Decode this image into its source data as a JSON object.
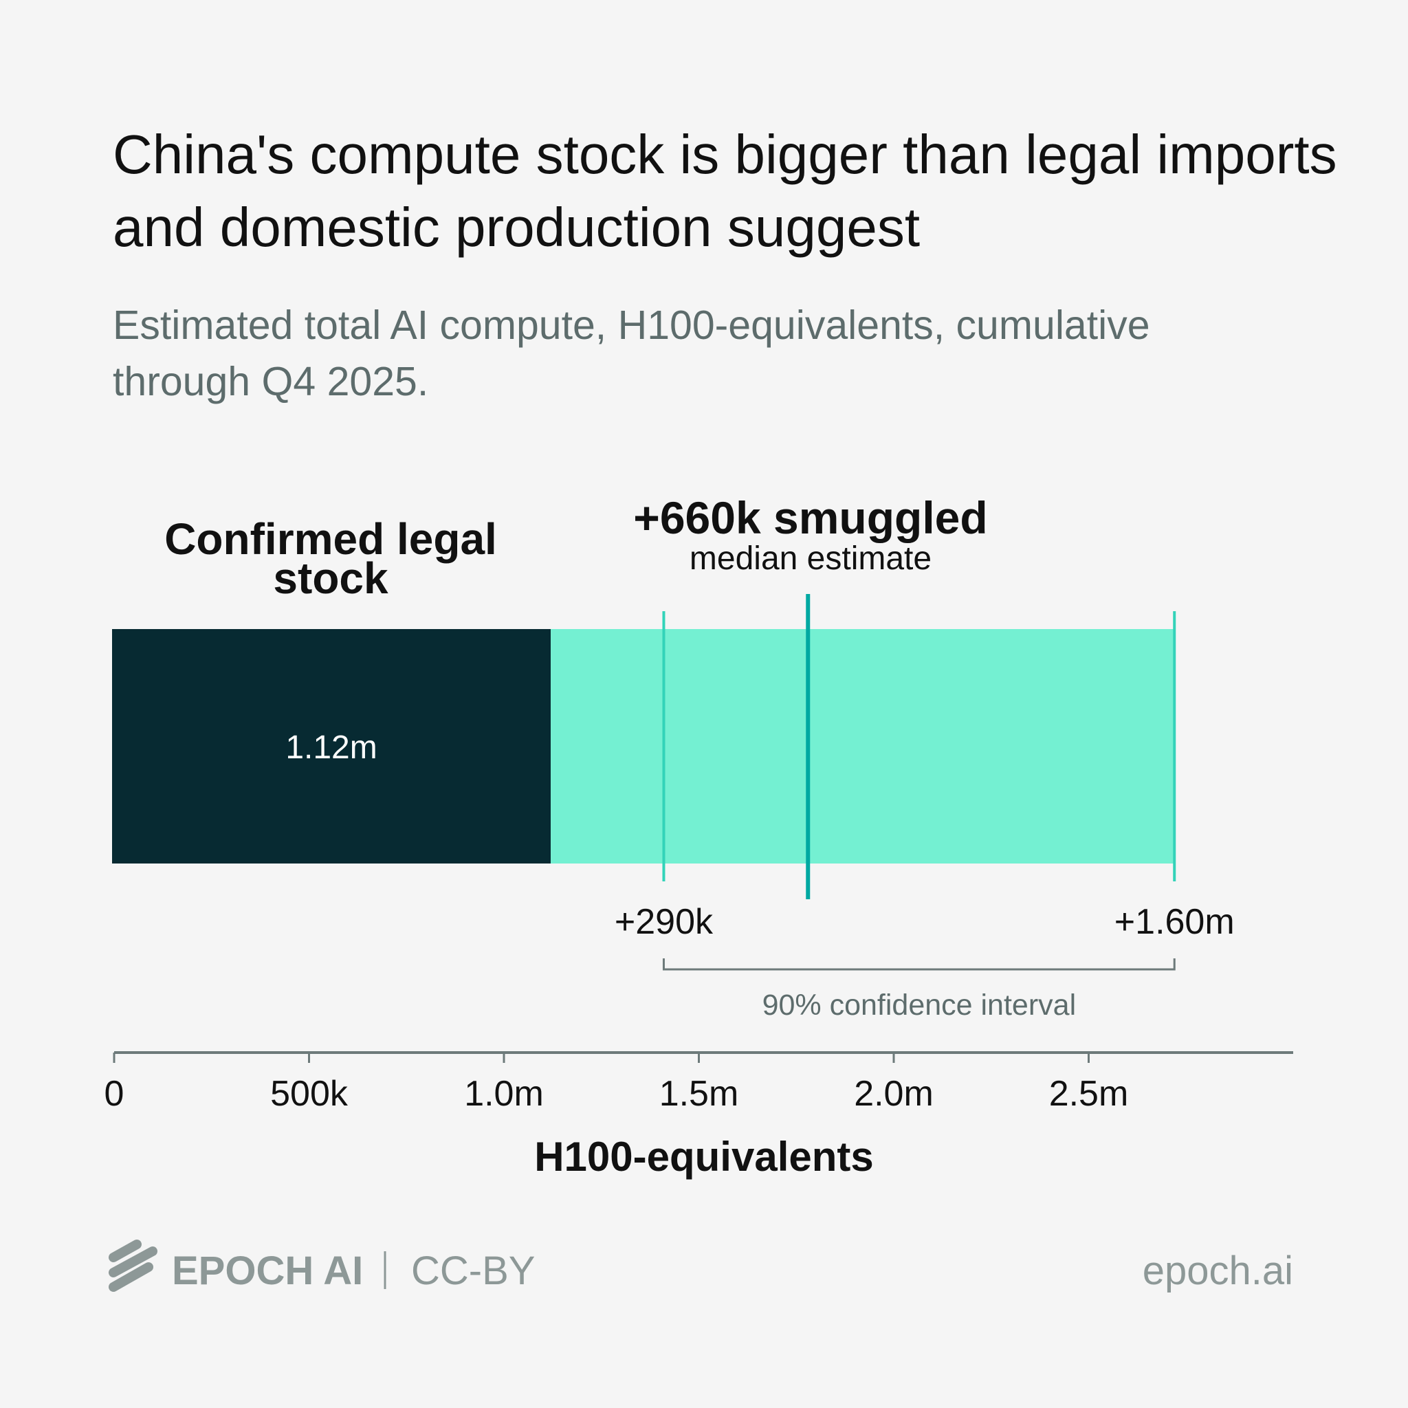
{
  "title": "China's compute stock is bigger than legal imports and domestic production suggest",
  "subtitle": "Estimated total AI compute, H100-equivalents, cumulative through Q4 2025.",
  "chart_data": {
    "type": "bar",
    "orientation": "horizontal-stacked",
    "xlabel": "H100-equivalents",
    "xlim": [
      0,
      3000000
    ],
    "ticks": [
      0,
      500000,
      1000000,
      1500000,
      2000000,
      2500000
    ],
    "tick_labels": [
      "0",
      "500k",
      "1.0m",
      "1.5m",
      "2.0m",
      "2.5m"
    ],
    "segments": [
      {
        "name": "Confirmed legal stock",
        "label_lines": [
          "Confirmed legal",
          "stock"
        ],
        "start": 0,
        "value": 1120000,
        "data_label": "1.12m",
        "color": "#072a32"
      },
      {
        "name": "Smuggled (90% CI upper)",
        "start": 1120000,
        "value": 1600000,
        "color": "#74f0d2"
      }
    ],
    "smuggled": {
      "median": 660000,
      "median_label": "+660k smuggled",
      "median_sublabel": "median estimate",
      "ci_low": 290000,
      "ci_low_label": "+290k",
      "ci_high": 1600000,
      "ci_high_label": "+1.60m",
      "ci_caption": "90% confidence interval",
      "median_color": "#00a9a2",
      "ci_color": "#33d3b9"
    },
    "grid": false
  },
  "footer": {
    "brand": "EPOCH AI",
    "license": "CC-BY",
    "site": "epoch.ai"
  }
}
